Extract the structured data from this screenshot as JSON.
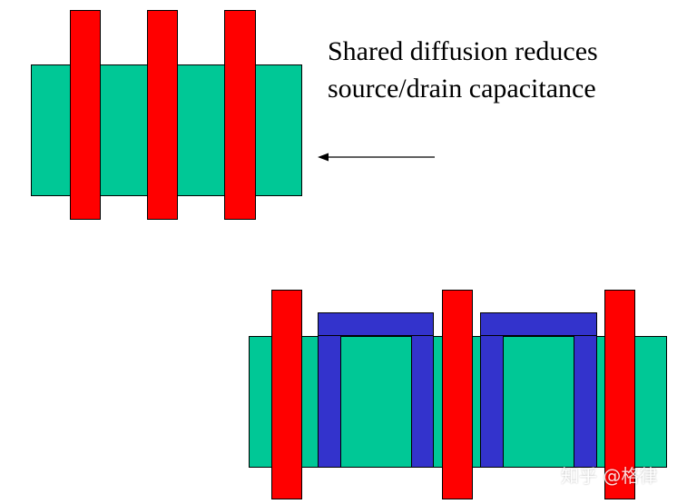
{
  "caption": {
    "line1": "Shared diffusion reduces",
    "line2": "source/drain capacitance"
  },
  "watermark": "知乎 @格律",
  "colors": {
    "diffusion": "#00c896",
    "gate": "#ff0000",
    "metal": "#3333cc",
    "outline": "#000000"
  },
  "diagrams": {
    "shared_diffusion": {
      "gates": 3,
      "diffusion_regions": 1
    },
    "separate_diffusion": {
      "gates": 3,
      "metal_straps": 2
    }
  }
}
